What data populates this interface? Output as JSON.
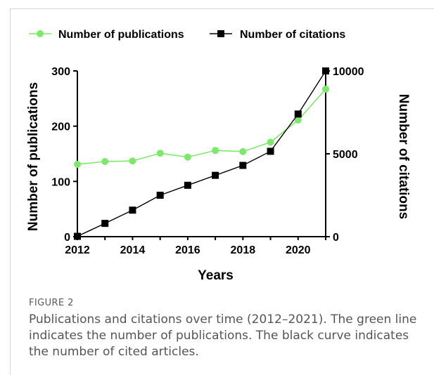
{
  "figure": {
    "label": "FIGURE 2",
    "caption": "Publications and citations over time (2012–2021). The green line indicates the number of publications. The black curve indicates the number of cited articles."
  },
  "chart_data": {
    "type": "line",
    "x": [
      2012,
      2013,
      2014,
      2015,
      2016,
      2017,
      2018,
      2019,
      2020,
      2021
    ],
    "xlabel": "Years",
    "x_ticks": [
      2012,
      2014,
      2016,
      2018,
      2020
    ],
    "x_tick_labels": [
      "2012",
      "2014",
      "2016",
      "2018",
      "2020"
    ],
    "xlim": [
      2012,
      2021
    ],
    "series": [
      {
        "name": "Number of publications",
        "axis": "left",
        "color": "#7ee86c",
        "marker": "circle",
        "values": [
          131,
          136,
          137,
          151,
          144,
          156,
          154,
          171,
          211,
          267
        ]
      },
      {
        "name": "Number of citations",
        "axis": "right",
        "color": "#000000",
        "marker": "square",
        "values": [
          20,
          800,
          1600,
          2500,
          3100,
          3700,
          4300,
          5150,
          7400,
          10000
        ]
      }
    ],
    "y_left": {
      "label": "Number of publications",
      "ylim": [
        0,
        300
      ],
      "ticks": [
        0,
        100,
        200,
        300
      ],
      "tick_labels": [
        "0",
        "100",
        "200",
        "300"
      ]
    },
    "y_right": {
      "label": "Number of citations",
      "ylim": [
        0,
        10000
      ],
      "ticks": [
        0,
        5000,
        10000
      ],
      "tick_labels": [
        "0",
        "5000",
        "10000"
      ]
    },
    "legend_position": "top",
    "grid": false
  }
}
